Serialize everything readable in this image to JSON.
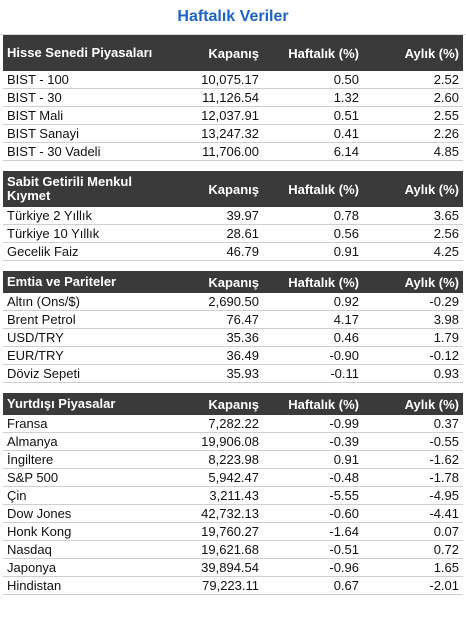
{
  "title": "Haftalık Veriler",
  "columns": {
    "close": "Kapanış",
    "weekly": "Haftalık (%)",
    "monthly": "Aylık (%)"
  },
  "sections": [
    {
      "name": "Hisse Senedi Piyasaları",
      "rows": [
        {
          "name": "BIST - 100",
          "close": "10,075.17",
          "weekly": "0.50",
          "monthly": "2.52"
        },
        {
          "name": "BIST - 30",
          "close": "11,126.54",
          "weekly": "1.32",
          "monthly": "2.60"
        },
        {
          "name": "BIST Mali",
          "close": "12,037.91",
          "weekly": "0.51",
          "monthly": "2.55"
        },
        {
          "name": "BIST Sanayi",
          "close": "13,247.32",
          "weekly": "0.41",
          "monthly": "2.26"
        },
        {
          "name": "BIST - 30 Vadeli",
          "close": "11,706.00",
          "weekly": "6.14",
          "monthly": "4.85"
        }
      ]
    },
    {
      "name": "Sabit Getirili Menkul Kıymet",
      "rows": [
        {
          "name": "Türkiye 2 Yıllık",
          "close": "39.97",
          "weekly": "0.78",
          "monthly": "3.65"
        },
        {
          "name": "Türkiye 10 Yıllık",
          "close": "28.61",
          "weekly": "0.56",
          "monthly": "2.56"
        },
        {
          "name": "Gecelik Faiz",
          "close": "46.79",
          "weekly": "0.91",
          "monthly": "4.25"
        }
      ]
    },
    {
      "name": "Emtia ve Pariteler",
      "rows": [
        {
          "name": "Altın (Ons/$)",
          "close": "2,690.50",
          "weekly": "0.92",
          "monthly": "-0.29"
        },
        {
          "name": "Brent Petrol",
          "close": "76.47",
          "weekly": "4.17",
          "monthly": "3.98"
        },
        {
          "name": "USD/TRY",
          "close": "35.36",
          "weekly": "0.46",
          "monthly": "1.79"
        },
        {
          "name": "EUR/TRY",
          "close": "36.49",
          "weekly": "-0.90",
          "monthly": "-0.12"
        },
        {
          "name": "Döviz Sepeti",
          "close": "35.93",
          "weekly": "-0.11",
          "monthly": "0.93"
        }
      ]
    },
    {
      "name": "Yurtdışı Piyasalar",
      "rows": [
        {
          "name": "Fransa",
          "close": "7,282.22",
          "weekly": "-0.99",
          "monthly": "0.37"
        },
        {
          "name": "Almanya",
          "close": "19,906.08",
          "weekly": "-0.39",
          "monthly": "-0.55"
        },
        {
          "name": "İngiltere",
          "close": "8,223.98",
          "weekly": "0.91",
          "monthly": "-1.62"
        },
        {
          "name": "S&P 500",
          "close": "5,942.47",
          "weekly": "-0.48",
          "monthly": "-1.78"
        },
        {
          "name": "Çin",
          "close": "3,211.43",
          "weekly": "-5.55",
          "monthly": "-4.95"
        },
        {
          "name": "Dow Jones",
          "close": "42,732.13",
          "weekly": "-0.60",
          "monthly": "-4.41"
        },
        {
          "name": "Honk Kong",
          "close": "19,760.27",
          "weekly": "-1.64",
          "monthly": "0.07"
        },
        {
          "name": "Nasdaq",
          "close": "19,621.68",
          "weekly": "-0.51",
          "monthly": "0.72"
        },
        {
          "name": "Japonya",
          "close": "39,894.54",
          "weekly": "-0.96",
          "monthly": "1.65"
        },
        {
          "name": "Hindistan",
          "close": "79,223.11",
          "weekly": "0.67",
          "monthly": "-2.01"
        }
      ]
    }
  ]
}
